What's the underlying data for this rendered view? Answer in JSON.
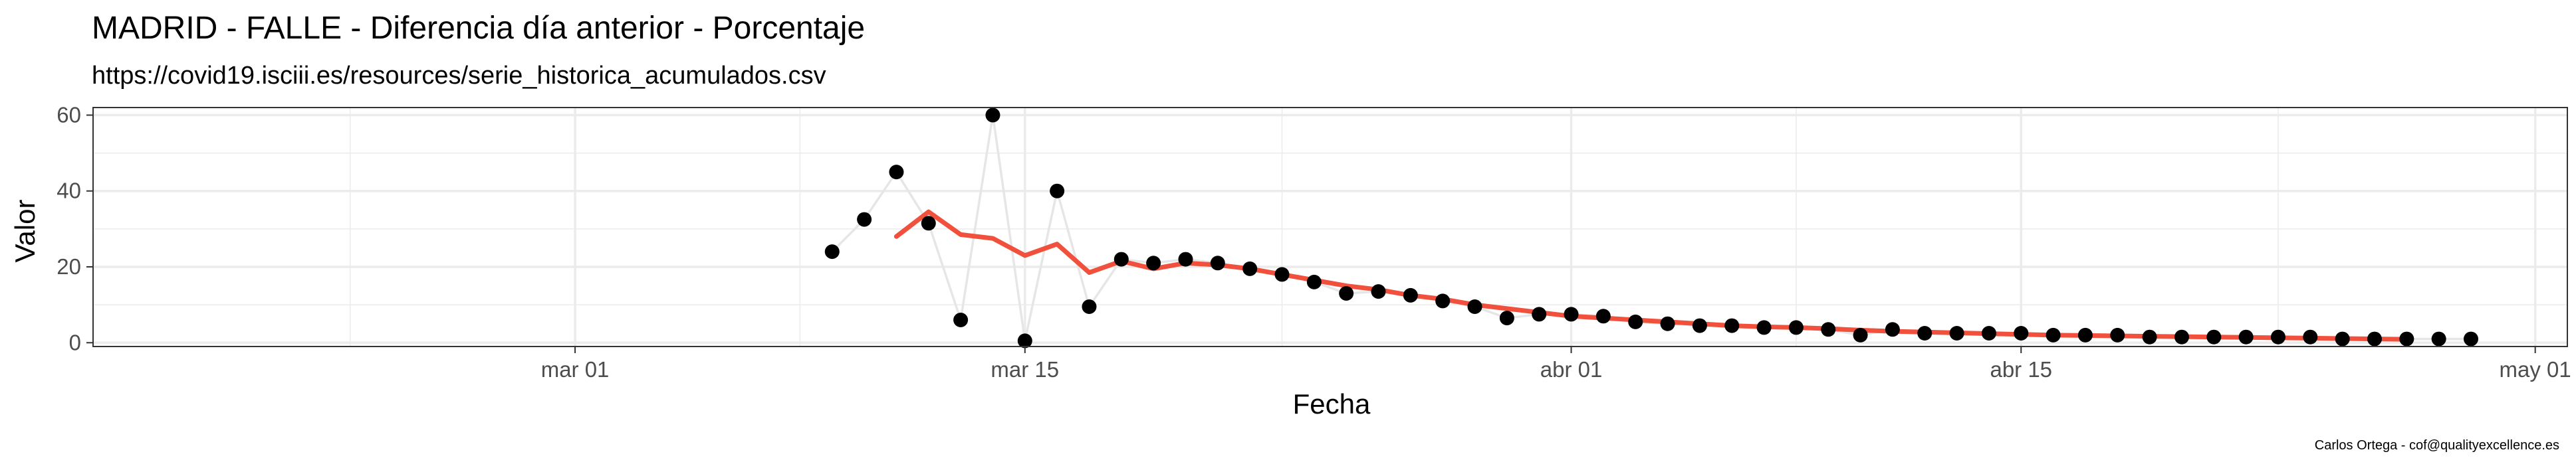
{
  "chart_data": {
    "type": "line",
    "title": "MADRID - FALLE - Diferencia día anterior - Porcentaje",
    "subtitle": "https://covid19.isciii.es/resources/serie_historica_acumulados.csv",
    "xlabel": "Fecha",
    "ylabel": "Valor",
    "caption": "Carlos Ortega - cof@qualityexcellence.es",
    "x_range": [
      "2020-02-15",
      "2020-05-02"
    ],
    "ylim": [
      -1,
      62
    ],
    "x_ticks": [
      {
        "date": "2020-03-01",
        "label": "mar 01"
      },
      {
        "date": "2020-03-15",
        "label": "mar 15"
      },
      {
        "date": "2020-04-01",
        "label": "abr 01"
      },
      {
        "date": "2020-04-15",
        "label": "abr 15"
      },
      {
        "date": "2020-05-01",
        "label": "may 01"
      }
    ],
    "y_ticks": [
      0,
      20,
      40,
      60
    ],
    "grid": true,
    "colors": {
      "points": "#000000",
      "raw_line": "#e6e6e6",
      "smooth_line": "#f0503c",
      "panel_border": "#333333",
      "grid": "#ebebeb"
    },
    "series": [
      {
        "kind": "points+line",
        "x": [
          "2020-03-09",
          "2020-03-10",
          "2020-03-11",
          "2020-03-12",
          "2020-03-13",
          "2020-03-14",
          "2020-03-15",
          "2020-03-16",
          "2020-03-17",
          "2020-03-18",
          "2020-03-19",
          "2020-03-20",
          "2020-03-21",
          "2020-03-22",
          "2020-03-23",
          "2020-03-24",
          "2020-03-25",
          "2020-03-26",
          "2020-03-27",
          "2020-03-28",
          "2020-03-29",
          "2020-03-30",
          "2020-03-31",
          "2020-04-01",
          "2020-04-02",
          "2020-04-03",
          "2020-04-04",
          "2020-04-05",
          "2020-04-06",
          "2020-04-07",
          "2020-04-08",
          "2020-04-09",
          "2020-04-10",
          "2020-04-11",
          "2020-04-12",
          "2020-04-13",
          "2020-04-14",
          "2020-04-15",
          "2020-04-16",
          "2020-04-17",
          "2020-04-18",
          "2020-04-19",
          "2020-04-20",
          "2020-04-21",
          "2020-04-22",
          "2020-04-23",
          "2020-04-24",
          "2020-04-25",
          "2020-04-26",
          "2020-04-27",
          "2020-04-28",
          "2020-04-29"
        ],
        "values": [
          24,
          32.5,
          45,
          31.5,
          6,
          60,
          0.5,
          40,
          9.5,
          22,
          21,
          22,
          21,
          19.5,
          18,
          16,
          13,
          13.5,
          12.5,
          11,
          9.5,
          6.5,
          7.5,
          7.5,
          7,
          5.5,
          5,
          4.5,
          4.5,
          4,
          4,
          3.5,
          2,
          3.5,
          2.5,
          2.5,
          2.5,
          2.5,
          2,
          2,
          2,
          1.5,
          1.5,
          1.5,
          1.5,
          1.5,
          1.5,
          1,
          1,
          1,
          1,
          1
        ]
      },
      {
        "kind": "smoothed",
        "x": [
          "2020-03-11",
          "2020-03-12",
          "2020-03-13",
          "2020-03-14",
          "2020-03-15",
          "2020-03-16",
          "2020-03-17",
          "2020-03-18",
          "2020-03-19",
          "2020-03-20",
          "2020-03-21",
          "2020-03-22",
          "2020-03-23",
          "2020-03-24",
          "2020-03-25",
          "2020-03-26",
          "2020-03-27",
          "2020-03-28",
          "2020-03-29",
          "2020-03-30",
          "2020-03-31",
          "2020-04-01",
          "2020-04-02",
          "2020-04-03",
          "2020-04-04",
          "2020-04-05",
          "2020-04-06",
          "2020-04-07",
          "2020-04-08",
          "2020-04-09",
          "2020-04-10",
          "2020-04-11",
          "2020-04-12",
          "2020-04-13",
          "2020-04-14",
          "2020-04-15",
          "2020-04-16",
          "2020-04-17",
          "2020-04-18",
          "2020-04-19",
          "2020-04-20",
          "2020-04-21",
          "2020-04-22",
          "2020-04-23",
          "2020-04-24",
          "2020-04-25",
          "2020-04-26",
          "2020-04-27"
        ],
        "values": [
          28,
          34.5,
          28.5,
          27.5,
          23,
          26,
          18.5,
          21.5,
          19.5,
          21,
          20.5,
          19.5,
          18,
          16.5,
          15,
          14,
          12.5,
          11.5,
          10,
          9,
          8,
          7,
          6.5,
          6,
          5.5,
          5,
          4.5,
          4.2,
          4,
          3.7,
          3.3,
          3,
          2.8,
          2.6,
          2.4,
          2.2,
          2,
          1.9,
          1.8,
          1.7,
          1.6,
          1.5,
          1.4,
          1.3,
          1.2,
          1.1,
          1,
          0.9
        ]
      }
    ]
  }
}
